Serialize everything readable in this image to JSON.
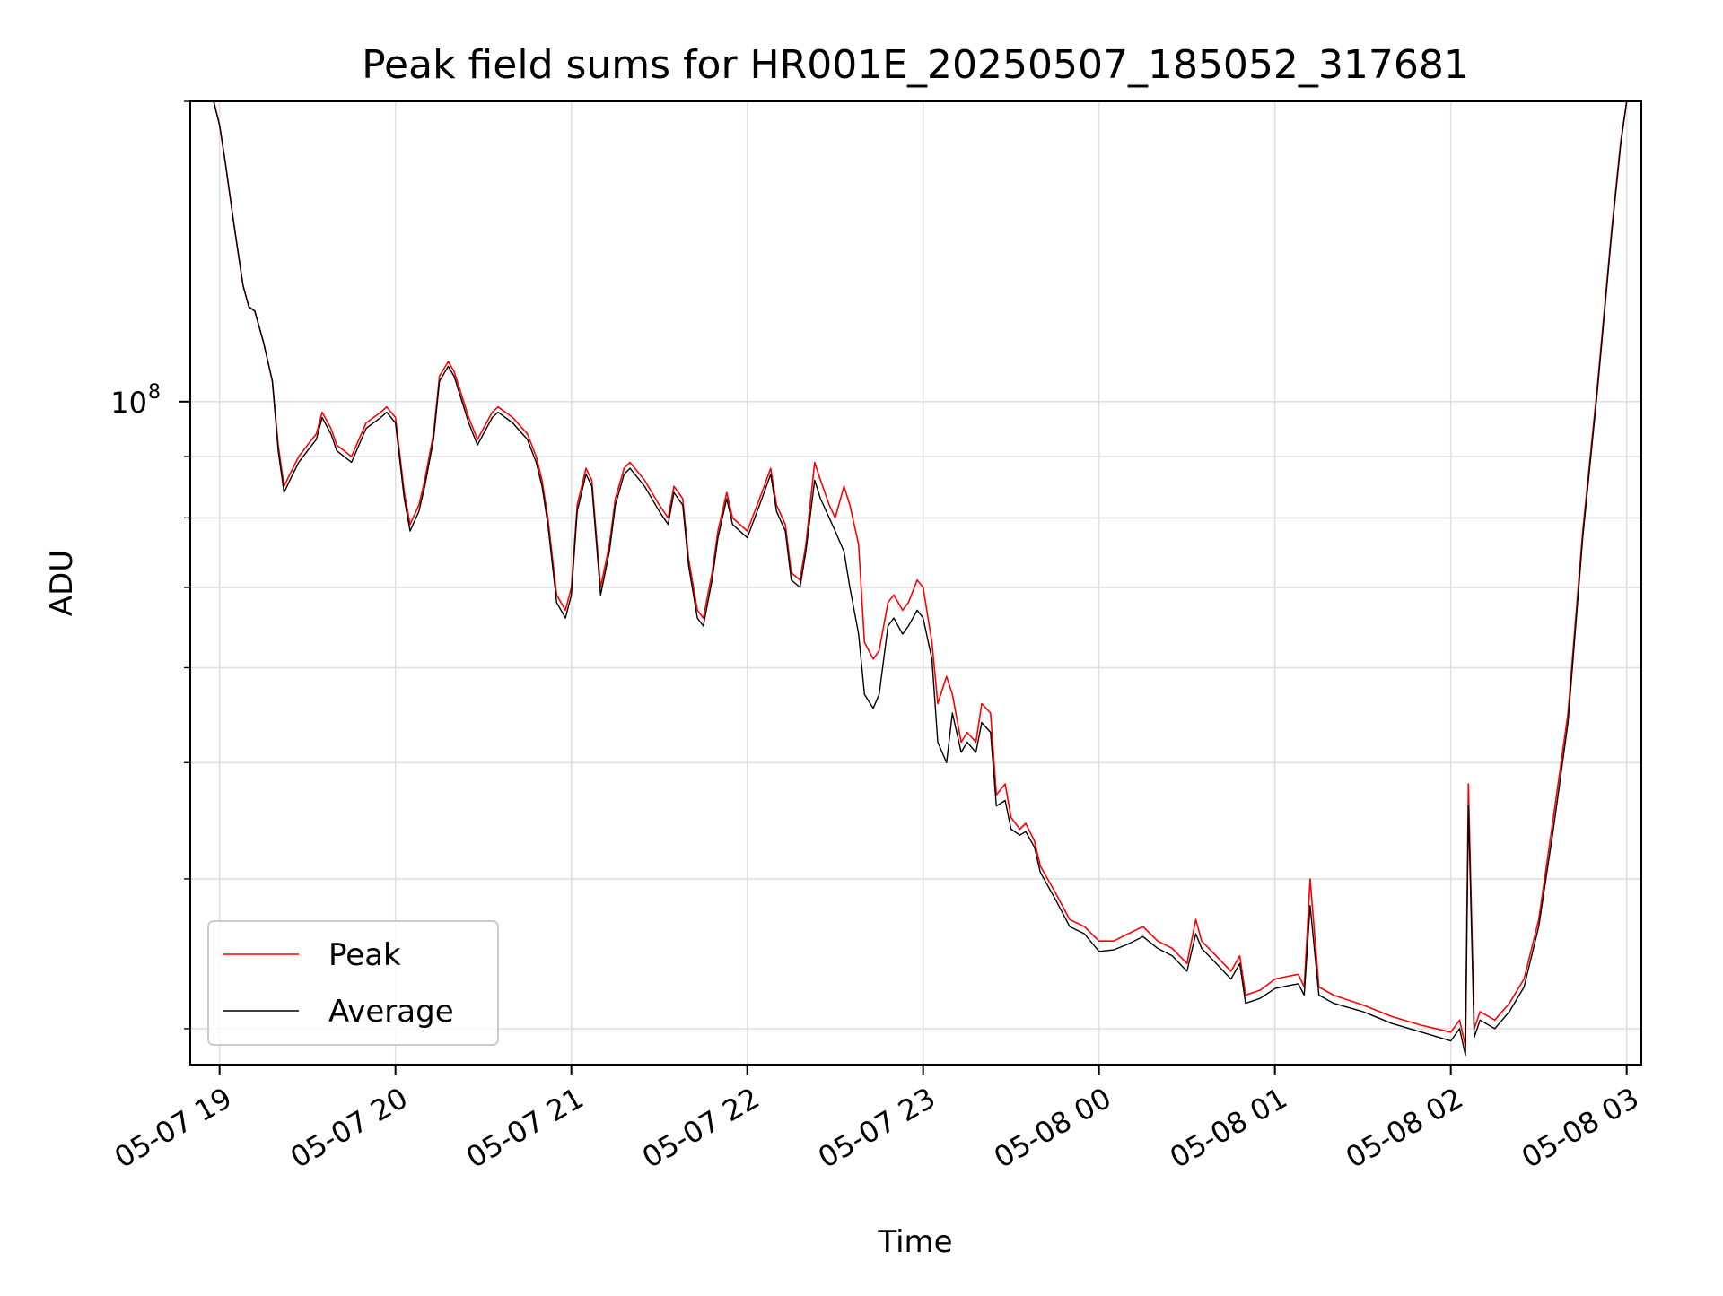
{
  "chart_data": {
    "type": "line",
    "title": "Peak field sums for HR001E_20250507_185052_317681",
    "xlabel": "Time",
    "ylabel": "ADU",
    "yscale": "log",
    "ylim": [
      28000000,
      178000000
    ],
    "xlim": [
      "2025-05-07 18:50",
      "2025-05-08 03:05"
    ],
    "grid": true,
    "legend_position": "lower-left",
    "x_tick_labels": [
      "05-07 19",
      "05-07 20",
      "05-07 21",
      "05-07 22",
      "05-07 23",
      "05-08 00",
      "05-08 01",
      "05-08 02",
      "05-08 03"
    ],
    "x_tick_values": [
      "2025-05-07 19:00",
      "2025-05-07 20:00",
      "2025-05-07 21:00",
      "2025-05-07 22:00",
      "2025-05-07 23:00",
      "2025-05-08 00:00",
      "2025-05-08 01:00",
      "2025-05-08 02:00",
      "2025-05-08 03:00"
    ],
    "y_major_tick_labels": [
      {
        "base": "10",
        "exp": "8",
        "value": 100000000
      }
    ],
    "y_minor_tick_values": [
      30000000,
      40000000,
      50000000,
      60000000,
      70000000,
      80000000,
      90000000,
      200000000
    ],
    "x": [
      "2025-05-07 18:50",
      "2025-05-07 18:58",
      "2025-05-07 19:00",
      "2025-05-07 19:02",
      "2025-05-07 19:05",
      "2025-05-07 19:08",
      "2025-05-07 19:10",
      "2025-05-07 19:12",
      "2025-05-07 19:15",
      "2025-05-07 19:18",
      "2025-05-07 19:20",
      "2025-05-07 19:22",
      "2025-05-07 19:25",
      "2025-05-07 19:27",
      "2025-05-07 19:30",
      "2025-05-07 19:33",
      "2025-05-07 19:35",
      "2025-05-07 19:38",
      "2025-05-07 19:40",
      "2025-05-07 19:45",
      "2025-05-07 19:50",
      "2025-05-07 19:55",
      "2025-05-07 19:57",
      "2025-05-07 20:00",
      "2025-05-07 20:03",
      "2025-05-07 20:05",
      "2025-05-07 20:08",
      "2025-05-07 20:10",
      "2025-05-07 20:13",
      "2025-05-07 20:15",
      "2025-05-07 20:18",
      "2025-05-07 20:20",
      "2025-05-07 20:25",
      "2025-05-07 20:28",
      "2025-05-07 20:30",
      "2025-05-07 20:33",
      "2025-05-07 20:35",
      "2025-05-07 20:40",
      "2025-05-07 20:45",
      "2025-05-07 20:48",
      "2025-05-07 20:50",
      "2025-05-07 20:52",
      "2025-05-07 20:55",
      "2025-05-07 20:58",
      "2025-05-07 21:00",
      "2025-05-07 21:02",
      "2025-05-07 21:05",
      "2025-05-07 21:07",
      "2025-05-07 21:10",
      "2025-05-07 21:13",
      "2025-05-07 21:15",
      "2025-05-07 21:18",
      "2025-05-07 21:20",
      "2025-05-07 21:25",
      "2025-05-07 21:30",
      "2025-05-07 21:33",
      "2025-05-07 21:35",
      "2025-05-07 21:38",
      "2025-05-07 21:40",
      "2025-05-07 21:43",
      "2025-05-07 21:45",
      "2025-05-07 21:48",
      "2025-05-07 21:50",
      "2025-05-07 21:53",
      "2025-05-07 21:55",
      "2025-05-07 22:00",
      "2025-05-07 22:05",
      "2025-05-07 22:08",
      "2025-05-07 22:10",
      "2025-05-07 22:13",
      "2025-05-07 22:15",
      "2025-05-07 22:18",
      "2025-05-07 22:20",
      "2025-05-07 22:23",
      "2025-05-07 22:25",
      "2025-05-07 22:28",
      "2025-05-07 22:30",
      "2025-05-07 22:33",
      "2025-05-07 22:35",
      "2025-05-07 22:38",
      "2025-05-07 22:40",
      "2025-05-07 22:43",
      "2025-05-07 22:45",
      "2025-05-07 22:48",
      "2025-05-07 22:50",
      "2025-05-07 22:53",
      "2025-05-07 22:55",
      "2025-05-07 22:58",
      "2025-05-07 23:00",
      "2025-05-07 23:03",
      "2025-05-07 23:05",
      "2025-05-07 23:08",
      "2025-05-07 23:10",
      "2025-05-07 23:13",
      "2025-05-07 23:15",
      "2025-05-07 23:18",
      "2025-05-07 23:20",
      "2025-05-07 23:23",
      "2025-05-07 23:25",
      "2025-05-07 23:28",
      "2025-05-07 23:30",
      "2025-05-07 23:33",
      "2025-05-07 23:35",
      "2025-05-07 23:38",
      "2025-05-07 23:40",
      "2025-05-07 23:45",
      "2025-05-07 23:50",
      "2025-05-07 23:55",
      "2025-05-08 00:00",
      "2025-05-08 00:05",
      "2025-05-08 00:10",
      "2025-05-08 00:15",
      "2025-05-08 00:20",
      "2025-05-08 00:25",
      "2025-05-08 00:30",
      "2025-05-08 00:33",
      "2025-05-08 00:35",
      "2025-05-08 00:40",
      "2025-05-08 00:45",
      "2025-05-08 00:48",
      "2025-05-08 00:50",
      "2025-05-08 00:55",
      "2025-05-08 01:00",
      "2025-05-08 01:05",
      "2025-05-08 01:08",
      "2025-05-08 01:10",
      "2025-05-08 01:12",
      "2025-05-08 01:15",
      "2025-05-08 01:20",
      "2025-05-08 01:30",
      "2025-05-08 01:40",
      "2025-05-08 01:50",
      "2025-05-08 02:00",
      "2025-05-08 02:03",
      "2025-05-08 02:05",
      "2025-05-08 02:06",
      "2025-05-08 02:08",
      "2025-05-08 02:10",
      "2025-05-08 02:15",
      "2025-05-08 02:20",
      "2025-05-08 02:25",
      "2025-05-08 02:30",
      "2025-05-08 02:35",
      "2025-05-08 02:40",
      "2025-05-08 02:45",
      "2025-05-08 02:50",
      "2025-05-08 02:55",
      "2025-05-08 02:58",
      "2025-05-08 03:00",
      "2025-05-08 03:05"
    ],
    "series": [
      {
        "name": "Peak",
        "color": "#ff0000",
        "values": [
          178000000,
          178000000,
          170000000,
          158000000,
          140000000,
          125000000,
          120000000,
          119000000,
          112000000,
          104000000,
          92000000,
          85000000,
          88000000,
          90000000,
          92000000,
          94000000,
          98000000,
          95000000,
          92000000,
          90000000,
          96000000,
          98000000,
          99000000,
          97000000,
          84000000,
          79000000,
          82000000,
          86000000,
          94000000,
          105000000,
          108000000,
          106000000,
          97000000,
          93000000,
          95000000,
          98000000,
          99000000,
          97000000,
          94000000,
          90000000,
          86000000,
          80000000,
          69000000,
          67000000,
          70000000,
          82000000,
          88000000,
          86000000,
          70000000,
          76000000,
          83000000,
          88000000,
          89000000,
          86000000,
          82000000,
          80000000,
          85000000,
          83000000,
          74000000,
          67000000,
          66000000,
          72000000,
          78000000,
          84000000,
          80000000,
          78000000,
          84000000,
          88000000,
          82000000,
          79000000,
          72000000,
          71000000,
          76000000,
          89000000,
          86000000,
          82000000,
          80000000,
          85000000,
          82000000,
          76000000,
          63000000,
          61000000,
          62000000,
          68000000,
          69000000,
          67000000,
          68000000,
          71000000,
          70000000,
          63000000,
          56000000,
          59000000,
          57000000,
          52000000,
          53000000,
          52000000,
          56000000,
          55000000,
          47000000,
          48000000,
          45000000,
          44000000,
          44500000,
          43000000,
          41000000,
          39000000,
          37000000,
          36500000,
          35500000,
          35500000,
          36000000,
          36500000,
          35500000,
          35000000,
          34000000,
          37000000,
          35500000,
          34500000,
          33500000,
          34500000,
          32000000,
          32300000,
          33000000,
          33200000,
          33300000,
          32500000,
          40000000,
          32500000,
          32000000,
          31400000,
          30700000,
          30200000,
          29800000,
          30500000,
          29000000,
          48000000,
          30000000,
          31000000,
          30500000,
          31500000,
          33000000,
          37000000,
          45000000,
          55000000,
          78000000,
          103000000,
          140000000,
          165000000,
          178000000,
          178000000
        ]
      },
      {
        "name": "Average",
        "color": "#000000",
        "values": [
          178000000,
          178000000,
          170000000,
          158000000,
          140000000,
          125000000,
          120000000,
          119000000,
          112000000,
          104000000,
          91000000,
          84000000,
          87000000,
          89000000,
          91000000,
          93000000,
          97000000,
          94000000,
          91000000,
          89000000,
          95000000,
          97000000,
          98000000,
          96000000,
          83000000,
          78000000,
          81000000,
          85000000,
          93000000,
          104000000,
          107000000,
          105000000,
          96000000,
          92000000,
          94000000,
          97000000,
          98000000,
          96000000,
          93000000,
          89000000,
          85000000,
          79000000,
          68000000,
          66000000,
          69000000,
          81000000,
          87000000,
          85000000,
          69000000,
          75000000,
          82000000,
          87000000,
          88000000,
          85000000,
          81000000,
          79000000,
          84000000,
          82000000,
          73000000,
          66000000,
          65000000,
          71000000,
          77000000,
          83000000,
          79000000,
          77000000,
          83000000,
          87000000,
          81000000,
          78000000,
          71000000,
          70000000,
          75000000,
          86000000,
          83000000,
          80000000,
          78000000,
          75000000,
          70000000,
          64000000,
          57000000,
          55500000,
          57000000,
          65000000,
          66000000,
          64000000,
          65000000,
          67000000,
          66000000,
          61000000,
          52000000,
          50000000,
          55000000,
          51000000,
          52000000,
          51000000,
          54000000,
          53000000,
          46000000,
          46500000,
          44000000,
          43500000,
          43800000,
          42500000,
          40500000,
          38500000,
          36500000,
          36000000,
          34800000,
          34900000,
          35300000,
          35800000,
          35000000,
          34500000,
          33500000,
          36000000,
          35000000,
          34000000,
          33000000,
          34000000,
          31500000,
          31800000,
          32400000,
          32600000,
          32700000,
          32000000,
          38000000,
          32000000,
          31500000,
          31000000,
          30300000,
          29800000,
          29300000,
          30000000,
          28500000,
          46000000,
          29500000,
          30500000,
          30000000,
          31000000,
          32500000,
          36500000,
          44000000,
          54000000,
          77000000,
          102000000,
          139000000,
          164000000,
          178000000,
          178000000
        ]
      }
    ]
  }
}
